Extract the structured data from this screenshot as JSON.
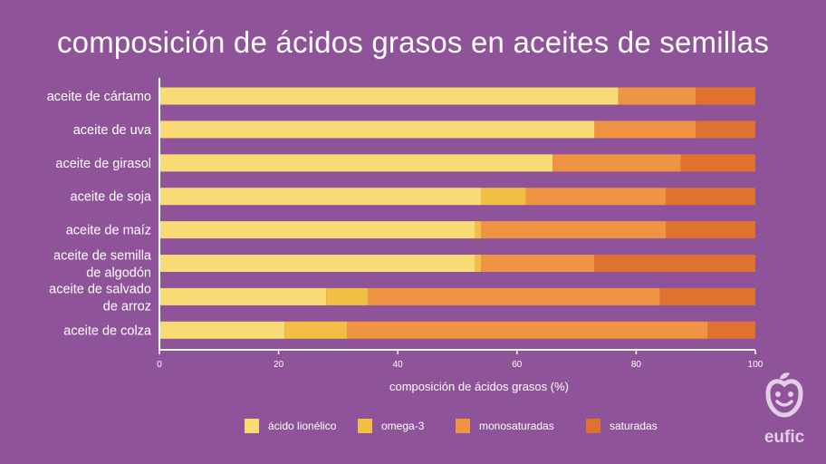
{
  "title": "composición de ácidos grasos en aceites de semillas",
  "brand": "eufic",
  "colors": {
    "background": "#8f5399",
    "linoleic": "#f7dc75",
    "omega3": "#f2bf44",
    "mono": "#ef9442",
    "sat": "#e0722f",
    "logo": "#e1cfe5"
  },
  "chart_data": {
    "type": "bar",
    "orientation": "horizontal",
    "stacked": true,
    "categories": [
      "aceite de cártamo",
      "aceite de uva",
      "aceite de girasol",
      "aceite de soja",
      "aceite de maíz",
      "aceite de semilla de algodón",
      "aceite de salvado de arroz",
      "aceite de colza"
    ],
    "series": [
      {
        "name": "ácido lionélico",
        "color": "#f7dc75",
        "values": [
          77,
          73,
          66,
          54,
          53,
          53,
          28,
          21
        ]
      },
      {
        "name": "omega-3",
        "color": "#f2bf44",
        "values": [
          0,
          0,
          0,
          7.5,
          1,
          1,
          7,
          10.5
        ]
      },
      {
        "name": "monosaturadas",
        "color": "#ef9442",
        "values": [
          13,
          17,
          21.5,
          23.5,
          31,
          19,
          49,
          60.5
        ]
      },
      {
        "name": "saturadas",
        "color": "#e0722f",
        "values": [
          10,
          10,
          12.5,
          15,
          15,
          27,
          16,
          8
        ]
      }
    ],
    "xlabel": "composición de ácidos grasos (%)",
    "ylabel": "",
    "xlim": [
      0,
      100
    ],
    "xticks": [
      0,
      20,
      40,
      60,
      80,
      100
    ],
    "grid": false,
    "legend_position": "bottom"
  }
}
